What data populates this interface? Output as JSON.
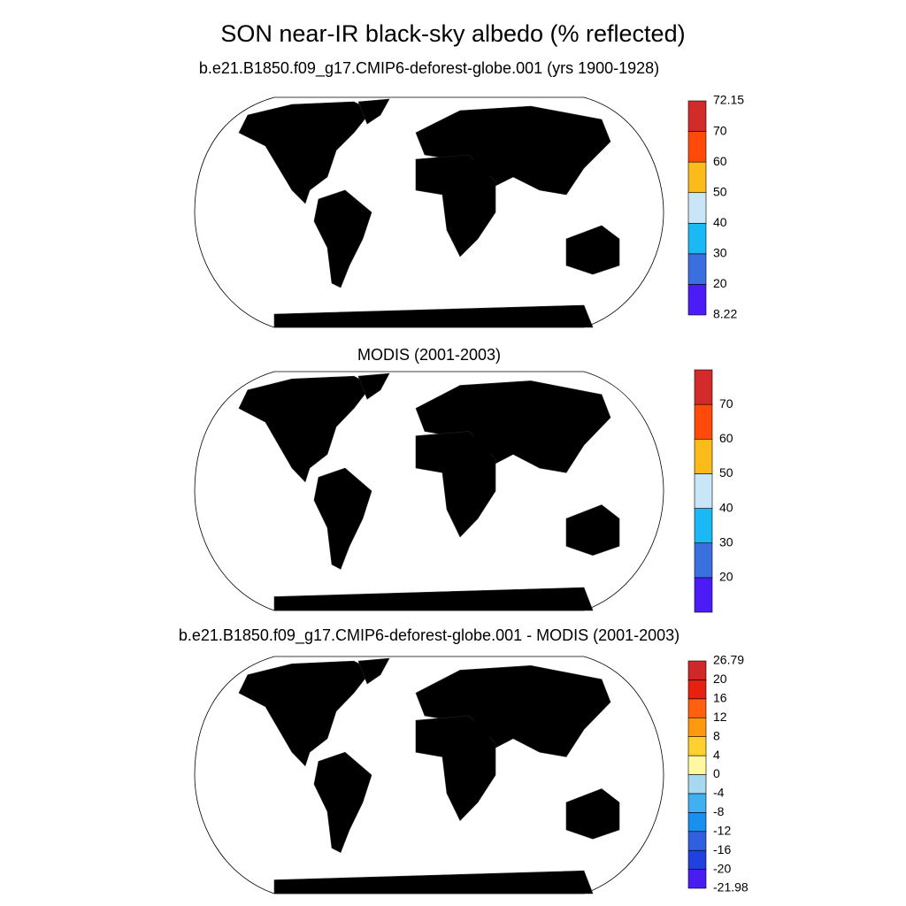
{
  "title": "SON near-IR black-sky albedo (% reflected)",
  "panels": [
    {
      "subtitle": "b.e21.B1850.f09_g17.CMIP6-deforest-globe.001 (yrs 1900-1928)",
      "colorbar": {
        "colors": [
          "#4b1cf5",
          "#3a6fe0",
          "#1ab8f5",
          "#c8e6f5",
          "#fbbb1a",
          "#ff4a0a",
          "#d32a2a"
        ],
        "labels": [
          "8.22",
          "20",
          "30",
          "40",
          "50",
          "60",
          "70",
          "72.15"
        ]
      }
    },
    {
      "subtitle": "MODIS (2001-2003)",
      "colorbar": {
        "colors": [
          "#4b1cf5",
          "#3a6fe0",
          "#1ab8f5",
          "#c8e6f5",
          "#fbbb1a",
          "#ff4a0a",
          "#d32a2a"
        ],
        "labels": [
          "20",
          "30",
          "40",
          "50",
          "60",
          "70"
        ]
      }
    },
    {
      "subtitle": "b.e21.B1850.f09_g17.CMIP6-deforest-globe.001 - MODIS (2001-2003)",
      "colorbar": {
        "colors": [
          "#4a1cf0",
          "#2040e0",
          "#3060e0",
          "#1890f0",
          "#40b0f0",
          "#a8d8f0",
          "#fff8a0",
          "#ffd030",
          "#ff9a10",
          "#ff6010",
          "#e82010",
          "#d02828"
        ],
        "labels": [
          "-21.98",
          "-20",
          "-16",
          "-12",
          "-8",
          "-4",
          "0",
          "4",
          "8",
          "12",
          "16",
          "20",
          "26.79"
        ]
      }
    }
  ]
}
